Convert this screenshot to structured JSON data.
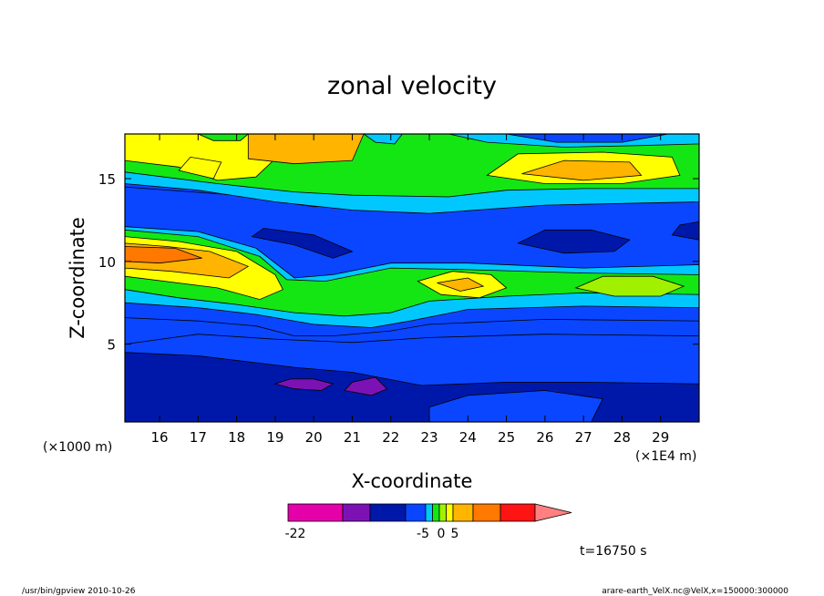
{
  "chart_data": {
    "type": "heatmap",
    "title": "zonal velocity",
    "xlabel": "X-coordinate",
    "ylabel": "Z-coordinate",
    "x_unit_note": "(×1E4 m)",
    "y_unit_note": "(×1000 m)",
    "xlim": [
      15.1,
      30.0
    ],
    "ylim": [
      0.3,
      17.7
    ],
    "x_ticks": [
      16,
      17,
      18,
      19,
      20,
      21,
      22,
      23,
      24,
      25,
      26,
      27,
      28,
      29
    ],
    "y_ticks": [
      5,
      10,
      15
    ],
    "colorbar": {
      "colors": [
        "#e600aa",
        "#7d12b4",
        "#0018aa",
        "#0a46ff",
        "#00c8ff",
        "#14e614",
        "#a0f000",
        "#ffff00",
        "#ffb400",
        "#ff7800",
        "#ff1414",
        "#ff8080"
      ],
      "tick_labels": [
        "-22",
        "-5",
        "0",
        "5"
      ],
      "tick_values": [
        -22,
        -5,
        0,
        5
      ]
    },
    "regions": [
      {
        "level": 3,
        "pts": [
          [
            15.1,
            5.0
          ],
          [
            17,
            5.6
          ],
          [
            19,
            5.3
          ],
          [
            21,
            5.1
          ],
          [
            23,
            5.4
          ],
          [
            26,
            5.6
          ],
          [
            30,
            5.5
          ],
          [
            30,
            0.3
          ],
          [
            15.1,
            0.3
          ]
        ]
      },
      {
        "level": 2,
        "pts": [
          [
            15.1,
            4.5
          ],
          [
            17,
            4.3
          ],
          [
            19.5,
            3.6
          ],
          [
            21,
            3.3
          ],
          [
            22.8,
            2.5
          ],
          [
            25,
            2.7
          ],
          [
            27,
            2.7
          ],
          [
            30,
            2.6
          ],
          [
            30,
            0.3
          ],
          [
            15.1,
            0.3
          ]
        ]
      },
      {
        "level": 3,
        "pts": [
          [
            23,
            0.3
          ],
          [
            23,
            1.2
          ],
          [
            24,
            1.9
          ],
          [
            26,
            2.2
          ],
          [
            27.5,
            1.7
          ],
          [
            27.2,
            0.3
          ]
        ]
      },
      {
        "level": 1,
        "pts": [
          [
            19.0,
            2.6
          ],
          [
            19.5,
            2.3
          ],
          [
            20.2,
            2.2
          ],
          [
            20.5,
            2.6
          ],
          [
            20.0,
            2.9
          ],
          [
            19.4,
            2.9
          ]
        ]
      },
      {
        "level": 1,
        "pts": [
          [
            20.8,
            2.2
          ],
          [
            21.5,
            1.9
          ],
          [
            21.9,
            2.3
          ],
          [
            21.6,
            3.0
          ],
          [
            21.0,
            2.7
          ]
        ]
      },
      {
        "level": 3,
        "pts": [
          [
            15.1,
            6.6
          ],
          [
            17,
            6.4
          ],
          [
            18.5,
            6.1
          ],
          [
            19.5,
            5.5
          ],
          [
            20.5,
            5.5
          ],
          [
            22,
            5.8
          ],
          [
            23,
            6.2
          ],
          [
            26,
            6.5
          ],
          [
            30,
            6.4
          ],
          [
            30,
            15.0
          ],
          [
            27,
            15.3
          ],
          [
            24,
            14.7
          ],
          [
            22,
            13.5
          ],
          [
            20,
            13.3
          ],
          [
            18,
            14.0
          ],
          [
            15.1,
            14.5
          ]
        ]
      },
      {
        "level": 4,
        "pts": [
          [
            15.1,
            7.5
          ],
          [
            17,
            7.2
          ],
          [
            18.5,
            6.8
          ],
          [
            20,
            6.2
          ],
          [
            21.5,
            6.0
          ],
          [
            22.5,
            6.4
          ],
          [
            24,
            7.1
          ],
          [
            27,
            7.3
          ],
          [
            30,
            7.2
          ],
          [
            30,
            9.8
          ],
          [
            27,
            9.6
          ],
          [
            24,
            9.9
          ],
          [
            22,
            9.9
          ],
          [
            20.5,
            9.2
          ],
          [
            19.5,
            9.0
          ],
          [
            18.5,
            10.8
          ],
          [
            17,
            11.8
          ],
          [
            15.1,
            12.1
          ]
        ]
      },
      {
        "level": 5,
        "pts": [
          [
            15.1,
            8.3
          ],
          [
            16.5,
            7.8
          ],
          [
            18,
            7.4
          ],
          [
            19.5,
            6.9
          ],
          [
            20.8,
            6.7
          ],
          [
            22,
            6.9
          ],
          [
            23,
            7.6
          ],
          [
            25,
            7.9
          ],
          [
            27,
            8.1
          ],
          [
            30,
            8.0
          ],
          [
            30,
            9.2
          ],
          [
            27,
            9.3
          ],
          [
            24,
            9.5
          ],
          [
            22,
            9.6
          ],
          [
            20.3,
            8.8
          ],
          [
            19.3,
            8.9
          ],
          [
            18.6,
            10.3
          ],
          [
            17,
            11.5
          ],
          [
            15.1,
            11.9
          ]
        ]
      },
      {
        "level": 7,
        "pts": [
          [
            15.1,
            9.1
          ],
          [
            17.5,
            8.4
          ],
          [
            18.6,
            7.7
          ],
          [
            19.2,
            8.3
          ],
          [
            19.0,
            9.2
          ],
          [
            18.0,
            10.6
          ],
          [
            16.5,
            11.2
          ],
          [
            15.1,
            11.5
          ]
        ]
      },
      {
        "level": 8,
        "pts": [
          [
            15.1,
            9.6
          ],
          [
            16.3,
            9.4
          ],
          [
            17.8,
            9.0
          ],
          [
            18.3,
            9.7
          ],
          [
            17.3,
            10.6
          ],
          [
            16.2,
            10.9
          ],
          [
            15.1,
            11.1
          ]
        ]
      },
      {
        "level": 9,
        "pts": [
          [
            15.1,
            10.0
          ],
          [
            16,
            9.9
          ],
          [
            17.1,
            10.2
          ],
          [
            16.4,
            10.8
          ],
          [
            15.1,
            10.9
          ]
        ]
      },
      {
        "level": 7,
        "pts": [
          [
            22.7,
            8.8
          ],
          [
            23.3,
            8.0
          ],
          [
            24.3,
            7.8
          ],
          [
            25.0,
            8.4
          ],
          [
            24.6,
            9.2
          ],
          [
            23.6,
            9.4
          ]
        ]
      },
      {
        "level": 8,
        "pts": [
          [
            23.2,
            8.7
          ],
          [
            23.8,
            8.2
          ],
          [
            24.4,
            8.5
          ],
          [
            24.0,
            9.0
          ]
        ]
      },
      {
        "level": 6,
        "pts": [
          [
            26.8,
            8.4
          ],
          [
            27.8,
            7.9
          ],
          [
            29.0,
            7.9
          ],
          [
            29.6,
            8.5
          ],
          [
            28.8,
            9.1
          ],
          [
            27.5,
            9.1
          ]
        ]
      },
      {
        "level": 2,
        "pts": [
          [
            18.7,
            12.0
          ],
          [
            20,
            11.6
          ],
          [
            21,
            10.6
          ],
          [
            20.5,
            10.2
          ],
          [
            19.5,
            11.0
          ],
          [
            18.4,
            11.5
          ]
        ]
      },
      {
        "level": 2,
        "pts": [
          [
            25.3,
            11.1
          ],
          [
            26.5,
            10.5
          ],
          [
            27.8,
            10.6
          ],
          [
            28.2,
            11.3
          ],
          [
            27.2,
            11.9
          ],
          [
            26.0,
            11.9
          ]
        ]
      },
      {
        "level": 2,
        "pts": [
          [
            29.3,
            11.6
          ],
          [
            30,
            11.3
          ],
          [
            30,
            12.4
          ],
          [
            29.5,
            12.2
          ]
        ]
      },
      {
        "level": 4,
        "pts": [
          [
            15.1,
            14.7
          ],
          [
            17,
            14.3
          ],
          [
            19,
            13.6
          ],
          [
            21,
            13.1
          ],
          [
            23,
            12.9
          ],
          [
            26,
            13.4
          ],
          [
            30,
            13.6
          ],
          [
            30,
            17.7
          ],
          [
            15.1,
            17.7
          ]
        ]
      },
      {
        "level": 5,
        "pts": [
          [
            15.1,
            15.4
          ],
          [
            17.5,
            14.7
          ],
          [
            19.5,
            14.2
          ],
          [
            21,
            14.0
          ],
          [
            23.5,
            13.9
          ],
          [
            25,
            14.3
          ],
          [
            27,
            14.4
          ],
          [
            30,
            14.4
          ],
          [
            30,
            17.7
          ],
          [
            15.1,
            17.7
          ]
        ]
      },
      {
        "level": 7,
        "pts": [
          [
            15.1,
            16.1
          ],
          [
            16.5,
            15.7
          ],
          [
            17.5,
            14.9
          ],
          [
            18.5,
            15.1
          ],
          [
            19,
            16.2
          ],
          [
            20,
            16.6
          ],
          [
            20.5,
            17.7
          ],
          [
            15.1,
            17.7
          ]
        ]
      },
      {
        "level": 7,
        "pts": [
          [
            24.5,
            15.2
          ],
          [
            26.0,
            14.7
          ],
          [
            28.0,
            14.7
          ],
          [
            29.5,
            15.2
          ],
          [
            29.3,
            16.3
          ],
          [
            27.5,
            16.6
          ],
          [
            25.3,
            16.5
          ]
        ]
      },
      {
        "level": 8,
        "pts": [
          [
            25.4,
            15.3
          ],
          [
            27.0,
            14.9
          ],
          [
            28.5,
            15.2
          ],
          [
            28.2,
            16.0
          ],
          [
            26.5,
            16.1
          ]
        ]
      },
      {
        "level": 8,
        "pts": [
          [
            18.3,
            16.2
          ],
          [
            19.5,
            15.9
          ],
          [
            21.0,
            16.1
          ],
          [
            21.3,
            17.7
          ],
          [
            18.3,
            17.7
          ]
        ]
      },
      {
        "level": 7,
        "pts": [
          [
            16.5,
            15.5
          ],
          [
            17.4,
            15.0
          ],
          [
            17.6,
            16.0
          ],
          [
            16.8,
            16.3
          ]
        ]
      },
      {
        "level": 4,
        "pts": [
          [
            23.5,
            17.7
          ],
          [
            24.5,
            17.2
          ],
          [
            26.5,
            16.9
          ],
          [
            28.5,
            17.0
          ],
          [
            30,
            17.1
          ],
          [
            30,
            17.7
          ]
        ]
      },
      {
        "level": 3,
        "pts": [
          [
            25,
            17.7
          ],
          [
            26.3,
            17.2
          ],
          [
            28,
            17.2
          ],
          [
            29.2,
            17.7
          ]
        ]
      },
      {
        "level": 4,
        "pts": [
          [
            21.3,
            17.7
          ],
          [
            21.6,
            17.2
          ],
          [
            22.1,
            17.1
          ],
          [
            22.3,
            17.7
          ]
        ]
      },
      {
        "level": 5,
        "pts": [
          [
            17.0,
            17.7
          ],
          [
            17.4,
            17.3
          ],
          [
            18.1,
            17.3
          ],
          [
            18.3,
            17.7
          ]
        ]
      }
    ]
  },
  "footer": {
    "time_label": "t=16750 s",
    "left_note": "/usr/bin/gpview  2010-10-26",
    "right_note": "arare-earth_VelX.nc@VelX,x=150000:300000"
  }
}
